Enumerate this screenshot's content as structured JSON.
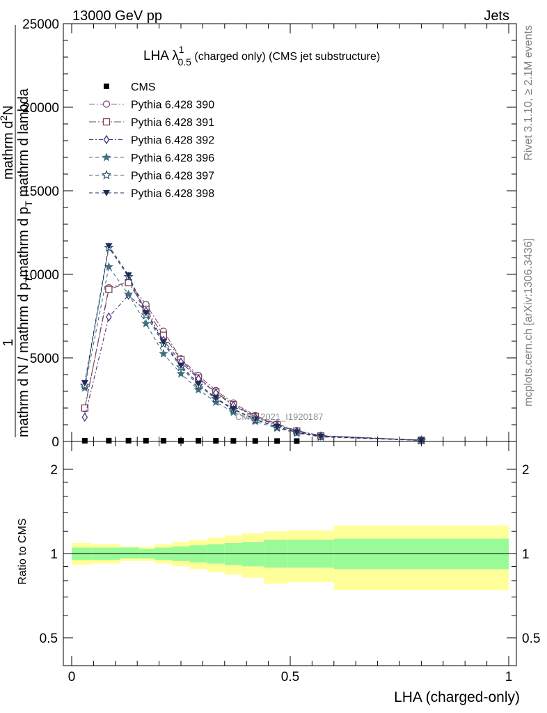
{
  "header": {
    "left": "13000 GeV pp",
    "right": "Jets",
    "side_top": "Rivet 3.1.10, ≥ 2.1M events",
    "side_bottom": "mcplots.cern.ch [arXiv:1306.3436]",
    "watermark": "CMS_2021_I1920187"
  },
  "chart_data": [
    {
      "type": "line",
      "panel": "main",
      "title": {
        "prefix": "LHA λ",
        "sup": "1",
        "sub": "0.5",
        "suffix": " (charged only) (CMS jet substructure)"
      },
      "ylabel": {
        "line1": "1",
        "line2": "mathrm d N / mathrm d p",
        "line2_sub": "T",
        "line3": "mathrm d",
        "line3_sup": "2",
        "line3_rest": "N",
        "line4": "mathrm d p",
        "line4_sub": "T",
        "line4_rest": " mathrm d lambda"
      },
      "ylim": [
        0,
        25000
      ],
      "yticks": [
        0,
        5000,
        10000,
        15000,
        20000,
        25000
      ],
      "ytick_labels": [
        "0",
        "5000",
        "10000",
        "15000",
        "20000",
        "25000"
      ],
      "xlim": [
        0,
        1
      ],
      "x": [
        0.03,
        0.085,
        0.13,
        0.17,
        0.21,
        0.25,
        0.29,
        0.33,
        0.37,
        0.42,
        0.47,
        0.515,
        0.57,
        0.8
      ],
      "legend_position": "top-left",
      "series": [
        {
          "name": "CMS",
          "color": "#000000",
          "marker": "square-filled",
          "dash": "none",
          "values": [
            45,
            48,
            48,
            46,
            44,
            42,
            40,
            37,
            34,
            30,
            26,
            22,
            null,
            null
          ]
        },
        {
          "name": "Pythia 6.428 390",
          "color": "#7b4a7a",
          "marker": "circle-open",
          "dash": "8,3,2,3",
          "values": [
            1950,
            9200,
            9550,
            8200,
            6600,
            4950,
            3950,
            3050,
            2300,
            1550,
            1050,
            650,
            350,
            80
          ]
        },
        {
          "name": "Pythia 6.428 391",
          "color": "#7a4050",
          "marker": "square-open",
          "dash": "10,3,2,3",
          "values": [
            2000,
            9100,
            9500,
            7900,
            6350,
            4900,
            3800,
            2950,
            2200,
            1500,
            1000,
            620,
            330,
            75
          ]
        },
        {
          "name": "Pythia 6.428 392",
          "color": "#4a3080",
          "marker": "diamond-open",
          "dash": "6,3,2,3",
          "values": [
            1450,
            7450,
            8750,
            7800,
            6050,
            4750,
            3750,
            2900,
            2150,
            1450,
            960,
            600,
            320,
            70
          ]
        },
        {
          "name": "Pythia 6.428 396",
          "color": "#3f7080",
          "marker": "star-filled",
          "dash": "5,4",
          "values": [
            3200,
            10450,
            8800,
            7050,
            5250,
            4050,
            3100,
            2350,
            1750,
            1200,
            800,
            500,
            270,
            60
          ]
        },
        {
          "name": "Pythia 6.428 397",
          "color": "#2e5568",
          "marker": "star-open",
          "dash": "5,4",
          "values": [
            3350,
            11600,
            9850,
            7550,
            5850,
            4450,
            3350,
            2550,
            1900,
            1300,
            860,
            540,
            290,
            65
          ]
        },
        {
          "name": "Pythia 6.428 398",
          "color": "#1e2a5c",
          "marker": "triangle-down-filled",
          "dash": "5,4",
          "values": [
            3500,
            11700,
            9950,
            7700,
            5950,
            4550,
            3450,
            2600,
            1950,
            1330,
            880,
            550,
            300,
            66
          ]
        }
      ]
    },
    {
      "type": "area",
      "panel": "ratio",
      "ylabel": "Ratio to CMS",
      "xlabel": "LHA (charged-only)",
      "ylim": [
        0.4,
        2.3
      ],
      "yticks": [
        0.5,
        1,
        2
      ],
      "ytick_labels": [
        "0.5",
        "1",
        "2"
      ],
      "xticks": [
        0,
        0.5,
        1
      ],
      "xtick_labels": [
        "0",
        "0.5",
        "1"
      ],
      "bin_edges": [
        0,
        0.045,
        0.11,
        0.155,
        0.19,
        0.23,
        0.27,
        0.31,
        0.35,
        0.39,
        0.44,
        0.495,
        0.54,
        0.6,
        1.0
      ],
      "band_inner": [
        [
          0.95,
          1.05
        ],
        [
          0.95,
          1.05
        ],
        [
          0.96,
          1.05
        ],
        [
          0.96,
          1.04
        ],
        [
          0.95,
          1.05
        ],
        [
          0.94,
          1.06
        ],
        [
          0.93,
          1.07
        ],
        [
          0.92,
          1.08
        ],
        [
          0.91,
          1.09
        ],
        [
          0.9,
          1.1
        ],
        [
          0.89,
          1.12
        ],
        [
          0.89,
          1.12
        ],
        [
          0.89,
          1.12
        ],
        [
          0.88,
          1.13
        ]
      ],
      "band_outer": [
        [
          0.91,
          1.09
        ],
        [
          0.92,
          1.08
        ],
        [
          0.94,
          1.06
        ],
        [
          0.94,
          1.06
        ],
        [
          0.92,
          1.08
        ],
        [
          0.9,
          1.1
        ],
        [
          0.88,
          1.12
        ],
        [
          0.86,
          1.14
        ],
        [
          0.84,
          1.16
        ],
        [
          0.82,
          1.18
        ],
        [
          0.78,
          1.2
        ],
        [
          0.79,
          1.21
        ],
        [
          0.79,
          1.21
        ],
        [
          0.74,
          1.26
        ]
      ],
      "reference": 1,
      "colors": {
        "band_inner": "#98fb98",
        "band_outer": "#ffff99",
        "reference": "#000000"
      }
    }
  ]
}
